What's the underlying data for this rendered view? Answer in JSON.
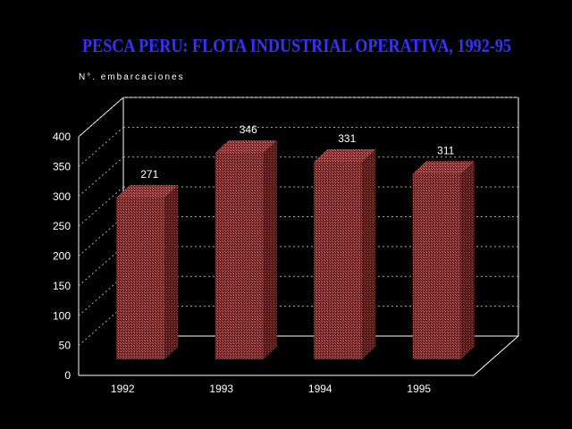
{
  "chart_data": {
    "type": "bar",
    "title": "PESCA PERU: FLOTA INDUSTRIAL OPERATIVA, 1992-95",
    "ylabel": "N°. embarcaciones",
    "xlabel": "",
    "categories": [
      "1992",
      "1993",
      "1994",
      "1995"
    ],
    "values": [
      271,
      346,
      331,
      311
    ],
    "data_labels": [
      "271",
      "346",
      "331",
      "311"
    ],
    "y_ticks": [
      "0",
      "50",
      "100",
      "150",
      "200",
      "250",
      "300",
      "350",
      "400"
    ],
    "ylim": [
      0,
      400
    ],
    "grid": true,
    "legend": "none",
    "style": "3d-bar"
  },
  "colors": {
    "background": "#000000",
    "title": "#3333ff",
    "text": "#ffffff",
    "bar_front": "#8b2e2e",
    "bar_side": "#6a1e1e",
    "bar_top": "#b04848",
    "axis": "#ffffff",
    "grid": "#aaaaaa"
  }
}
